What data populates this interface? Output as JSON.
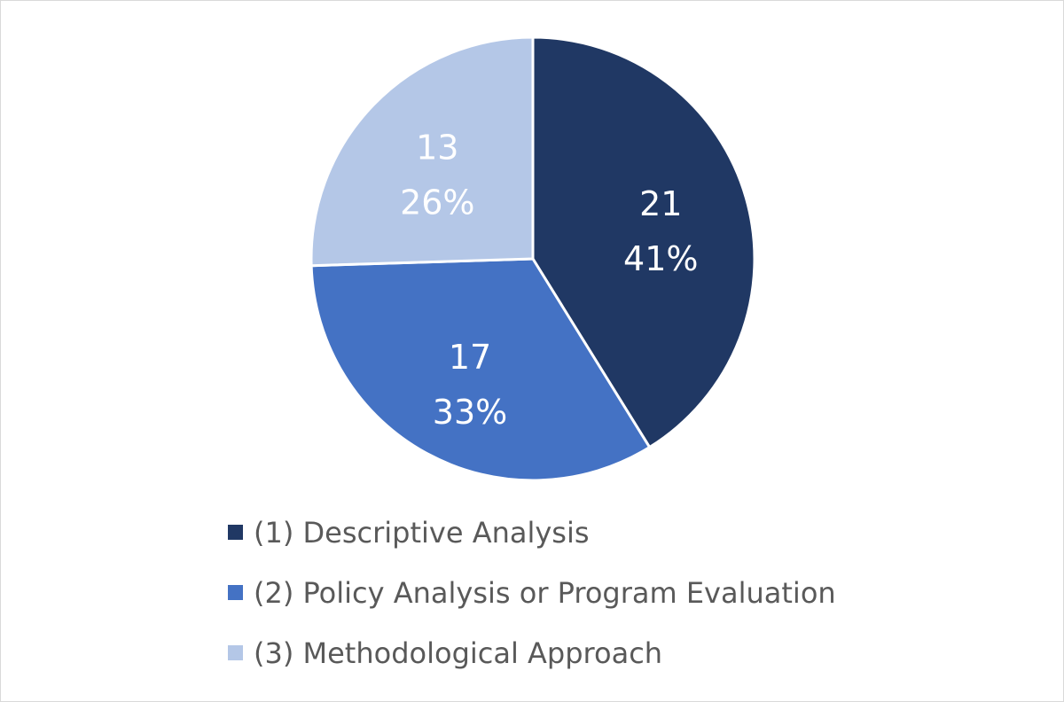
{
  "chart_data": {
    "type": "pie",
    "title": "",
    "legend": "bottom",
    "slices": [
      {
        "label": "(1) Descriptive Analysis",
        "value": 21,
        "percent": "41%",
        "color": "#203864"
      },
      {
        "label": "(2) Policy Analysis or Program Evaluation",
        "value": 17,
        "percent": "33%",
        "color": "#4472C4"
      },
      {
        "label": "(3) Methodological Approach",
        "value": 13,
        "percent": "26%",
        "color": "#B4C7E7"
      }
    ]
  }
}
